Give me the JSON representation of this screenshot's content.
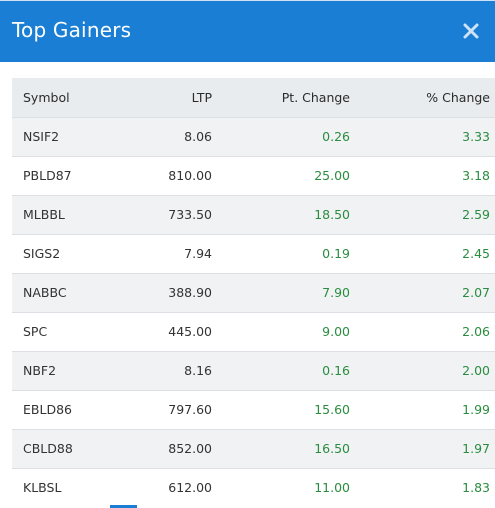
{
  "header": {
    "title": "Top Gainers",
    "close_icon": "close-icon"
  },
  "colors": {
    "header_bg": "#1a7fd4",
    "positive": "#2a8c3f",
    "row_alt": "#f1f2f4",
    "thead_bg": "#e9ecef"
  },
  "table": {
    "columns": [
      "Symbol",
      "LTP",
      "Pt. Change",
      "% Change"
    ],
    "rows": [
      {
        "symbol": "NSIF2",
        "ltp": "8.06",
        "pt_change": "0.26",
        "pct_change": "3.33"
      },
      {
        "symbol": "PBLD87",
        "ltp": "810.00",
        "pt_change": "25.00",
        "pct_change": "3.18"
      },
      {
        "symbol": "MLBBL",
        "ltp": "733.50",
        "pt_change": "18.50",
        "pct_change": "2.59"
      },
      {
        "symbol": "SIGS2",
        "ltp": "7.94",
        "pt_change": "0.19",
        "pct_change": "2.45"
      },
      {
        "symbol": "NABBC",
        "ltp": "388.90",
        "pt_change": "7.90",
        "pct_change": "2.07"
      },
      {
        "symbol": "SPC",
        "ltp": "445.00",
        "pt_change": "9.00",
        "pct_change": "2.06"
      },
      {
        "symbol": "NBF2",
        "ltp": "8.16",
        "pt_change": "0.16",
        "pct_change": "2.00"
      },
      {
        "symbol": "EBLD86",
        "ltp": "797.60",
        "pt_change": "15.60",
        "pct_change": "1.99"
      },
      {
        "symbol": "CBLD88",
        "ltp": "852.00",
        "pt_change": "16.50",
        "pct_change": "1.97"
      },
      {
        "symbol": "KLBSL",
        "ltp": "612.00",
        "pt_change": "11.00",
        "pct_change": "1.83"
      }
    ]
  }
}
